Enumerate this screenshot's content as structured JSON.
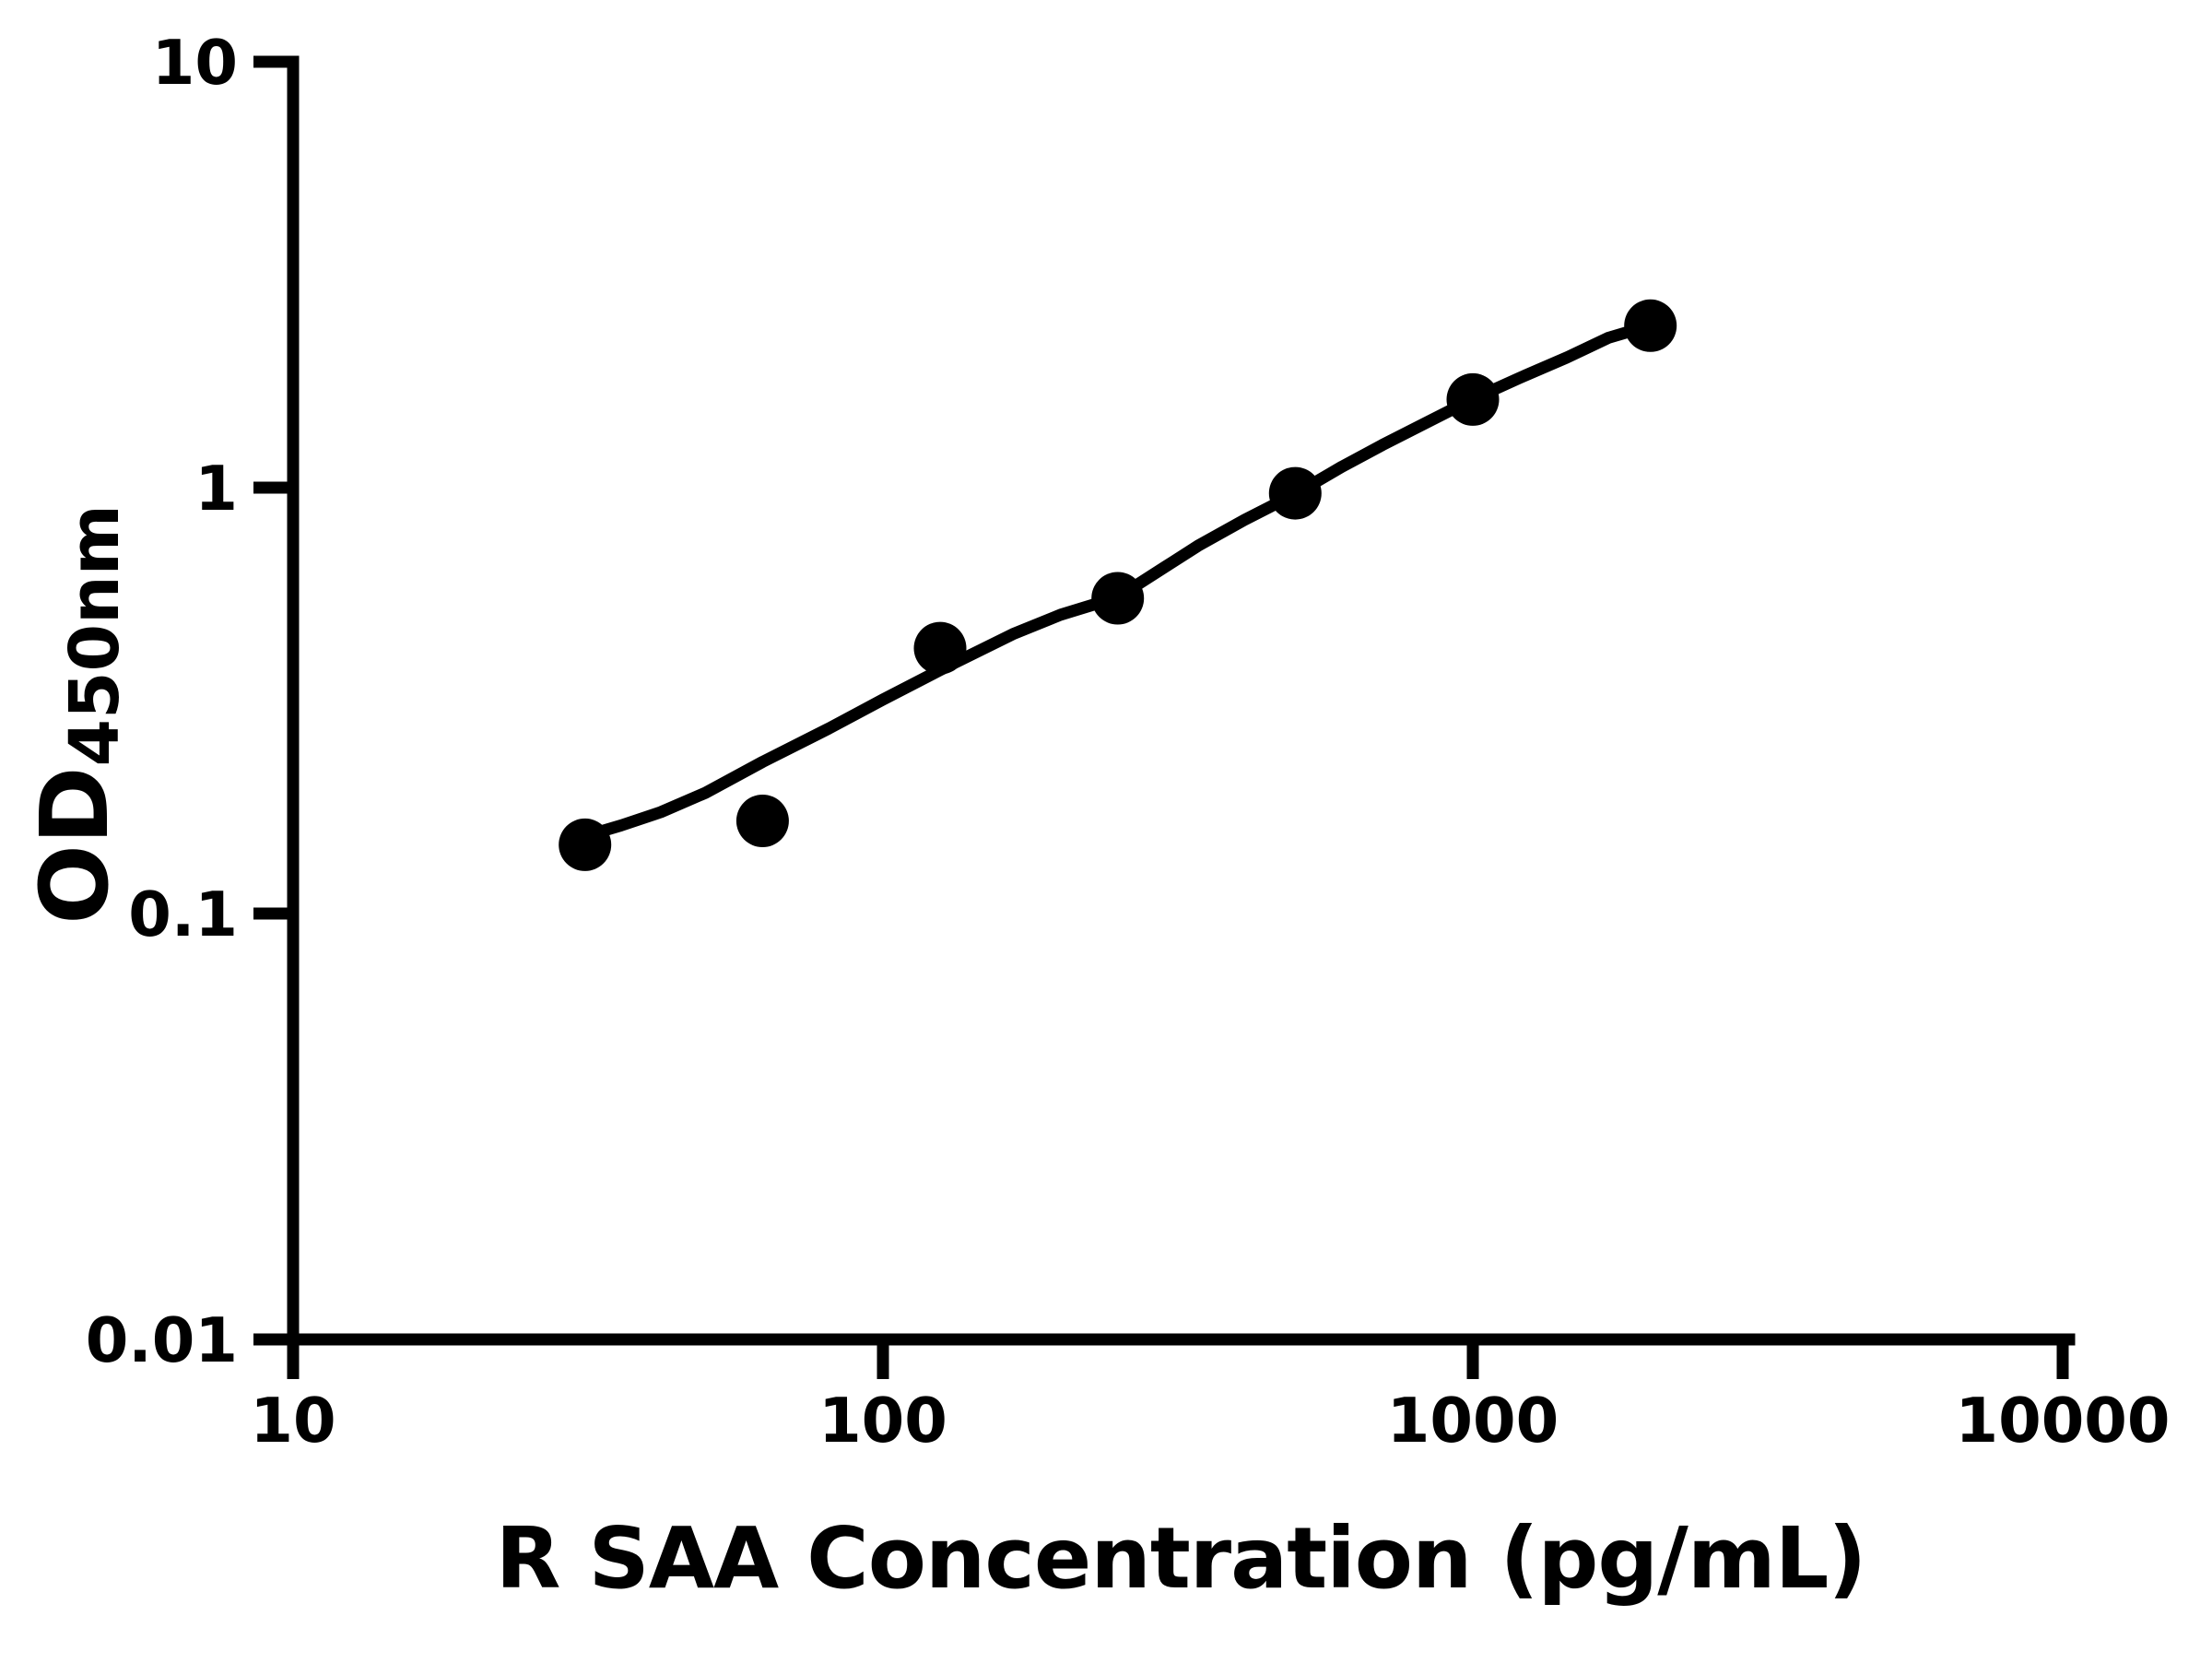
{
  "figure": {
    "background": "#ffffff",
    "ink_color": "#000000"
  },
  "chart_data": {
    "type": "scatter",
    "title": "",
    "xlabel": "R SAA Concentration (pg/mL)",
    "ylabel": "OD",
    "ylabel_subscript": "450nm",
    "x_scale": "log",
    "y_scale": "log",
    "xlim": [
      10,
      10000
    ],
    "ylim": [
      0.01,
      10
    ],
    "grid": false,
    "legend": false,
    "marker": "filled-circle",
    "marker_color": "#000000",
    "line_color": "#000000",
    "x_ticks": [
      "10",
      "100",
      "1000",
      "10000"
    ],
    "y_ticks": [
      "10",
      "1",
      "0.1",
      "0.01"
    ],
    "series": [
      {
        "name": "standards",
        "points": [
          {
            "conc": 31.25,
            "od": 0.145
          },
          {
            "conc": 62.5,
            "od": 0.165
          },
          {
            "conc": 125,
            "od": 0.42
          },
          {
            "conc": 250,
            "od": 0.55
          },
          {
            "conc": 500,
            "od": 0.97
          },
          {
            "conc": 1000,
            "od": 1.61
          },
          {
            "conc": 2000,
            "od": 2.4
          }
        ]
      },
      {
        "name": "fitted-curve",
        "fit_curve": [
          [
            31.25,
            0.152
          ],
          [
            36,
            0.161
          ],
          [
            42,
            0.173
          ],
          [
            50,
            0.192
          ],
          [
            62.5,
            0.227
          ],
          [
            81,
            0.272
          ],
          [
            100,
            0.318
          ],
          [
            125,
            0.373
          ],
          [
            166,
            0.453
          ],
          [
            200,
            0.503
          ],
          [
            250,
            0.553
          ],
          [
            300,
            0.65
          ],
          [
            342,
            0.73
          ],
          [
            410,
            0.84
          ],
          [
            500,
            0.966
          ],
          [
            600,
            1.12
          ],
          [
            703,
            1.26
          ],
          [
            850,
            1.44
          ],
          [
            1000,
            1.614
          ],
          [
            1200,
            1.81
          ],
          [
            1443,
            2.02
          ],
          [
            1700,
            2.25
          ],
          [
            2000,
            2.404
          ]
        ]
      }
    ]
  }
}
